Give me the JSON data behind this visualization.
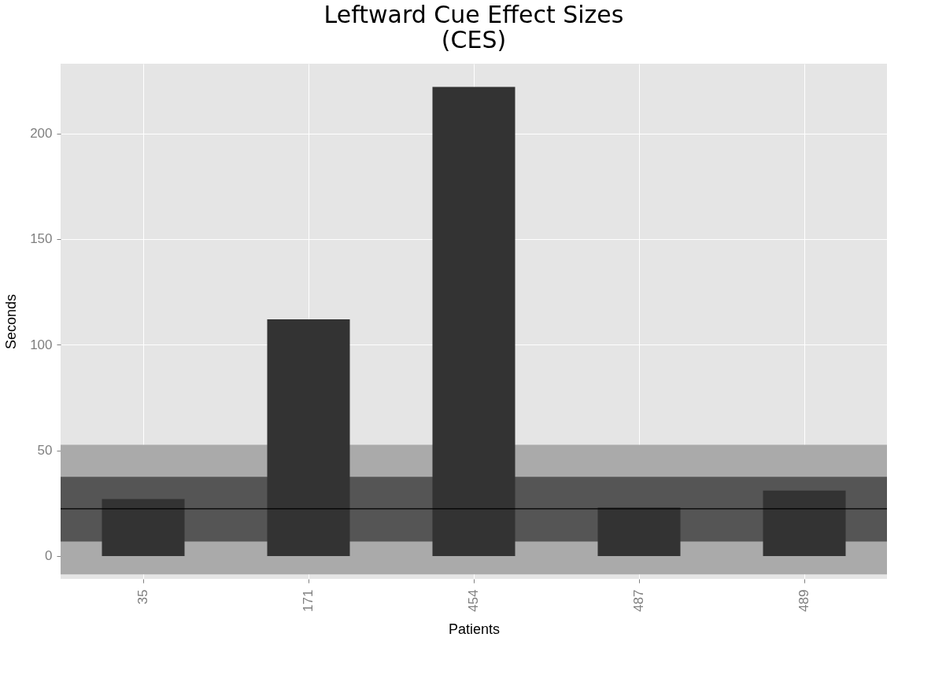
{
  "chart_data": {
    "type": "bar",
    "title": [
      "Leftward Cue Effect Sizes",
      "(CES)"
    ],
    "xlabel": "Patients",
    "ylabel": "Seconds",
    "categories": [
      "35",
      "171",
      "454",
      "487",
      "489"
    ],
    "values": [
      27,
      112,
      222,
      23,
      31
    ],
    "color": "#333333",
    "ylim": [
      -10.8,
      233
    ],
    "yticks": [
      0,
      50,
      100,
      150,
      200
    ],
    "grid": true,
    "bands": [
      {
        "axis": "y",
        "from": -8.7,
        "to": 52.7,
        "color": "#aaaaaa"
      },
      {
        "axis": "y",
        "from": 6.9,
        "to": 37.5,
        "color": "#555555"
      }
    ],
    "ref_lines": [
      {
        "axis": "y",
        "value": 22.4,
        "color": "#000000"
      }
    ]
  }
}
